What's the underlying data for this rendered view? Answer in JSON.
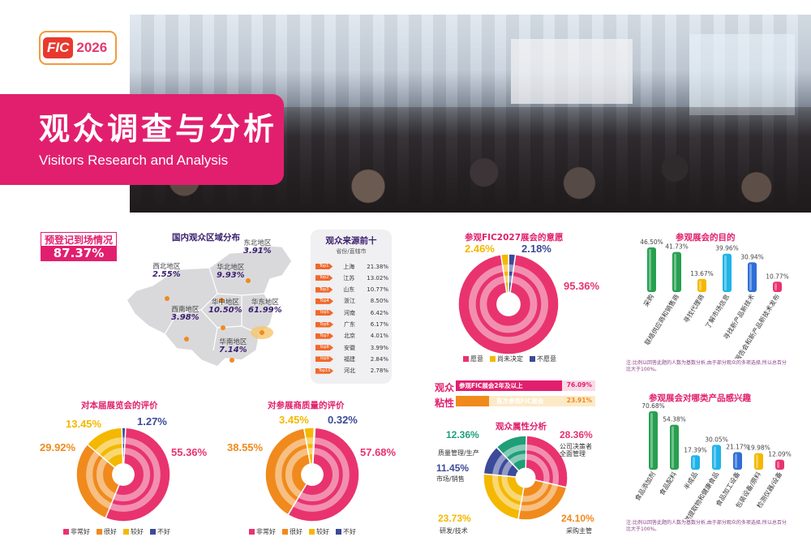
{
  "header": {
    "logo_text": "FIC",
    "logo_year": "2026",
    "title_cn": "观众调查与分析",
    "title_en": "Visitors Research and Analysis"
  },
  "prereg": {
    "label": "预登记到场情况",
    "value": "87.37%"
  },
  "region_map": {
    "title": "国内观众区域分布",
    "regions": [
      {
        "name": "东北地区",
        "value": "3.91%"
      },
      {
        "name": "华北地区",
        "value": "9.93%"
      },
      {
        "name": "西北地区",
        "value": "2.55%"
      },
      {
        "name": "华中地区",
        "value": "10.50%"
      },
      {
        "name": "华东地区",
        "value": "61.99%"
      },
      {
        "name": "西南地区",
        "value": "3.98%"
      },
      {
        "name": "华南地区",
        "value": "7.14%"
      }
    ]
  },
  "top10": {
    "title": "观众来源前十",
    "subtitle": "省份/直辖市",
    "rows": [
      {
        "rank": "Top1",
        "name": "上海",
        "value": "21.38%"
      },
      {
        "rank": "Top2",
        "name": "江苏",
        "value": "13.02%"
      },
      {
        "rank": "Top3",
        "name": "山东",
        "value": "10.77%"
      },
      {
        "rank": "Top4",
        "name": "浙江",
        "value": "8.50%"
      },
      {
        "rank": "Top5",
        "name": "河南",
        "value": "6.42%"
      },
      {
        "rank": "Top6",
        "name": "广东",
        "value": "6.17%"
      },
      {
        "rank": "Top7",
        "name": "北京",
        "value": "4.01%"
      },
      {
        "rank": "Top8",
        "name": "安徽",
        "value": "3.99%"
      },
      {
        "rank": "Top9",
        "name": "福建",
        "value": "2.84%"
      },
      {
        "rank": "Top10",
        "name": "河北",
        "value": "2.78%"
      }
    ]
  },
  "stickiness": {
    "label_a": "观众",
    "label_b": "粘性",
    "rows": [
      {
        "text": "参观FIC展会2年及以上",
        "value": "76.09%",
        "pct": 76.09
      },
      {
        "text": "首次参观FIC展会",
        "value": "23.91%",
        "pct": 23.91
      }
    ]
  },
  "colors": {
    "pink": "#e8336f",
    "orange": "#f08a1c",
    "yellow": "#f4b800",
    "navy": "#3b4a9a",
    "green": "#27a050",
    "blue": "#2f6fd6"
  },
  "chart_data": [
    {
      "id": "intent",
      "type": "pie",
      "title": "参观FIC2027展会的意愿",
      "labels": [
        "愿意",
        "尚未决定",
        "不愿意"
      ],
      "values": [
        95.36,
        2.46,
        2.18
      ],
      "value_labels": [
        "95.36%",
        "2.46%",
        "2.18%"
      ],
      "colors": [
        "#e8336f",
        "#f4b800",
        "#3b4a9a"
      ]
    },
    {
      "id": "show-rating",
      "type": "pie",
      "title": "对本届展览会的评价",
      "labels": [
        "非常好",
        "很好",
        "较好",
        "不好"
      ],
      "values": [
        55.36,
        29.92,
        13.45,
        1.27
      ],
      "value_labels": [
        "55.36%",
        "29.92%",
        "13.45%",
        "1.27%"
      ],
      "colors": [
        "#e8336f",
        "#f08a1c",
        "#f4b800",
        "#3b4a9a"
      ]
    },
    {
      "id": "exhibitor-rating",
      "type": "pie",
      "title": "对参展商质量的评价",
      "labels": [
        "非常好",
        "很好",
        "较好",
        "不好"
      ],
      "values": [
        57.68,
        38.55,
        3.45,
        0.32
      ],
      "value_labels": [
        "57.68%",
        "38.55%",
        "3.45%",
        "0.32%"
      ],
      "colors": [
        "#e8336f",
        "#f08a1c",
        "#f4b800",
        "#3b4a9a"
      ]
    },
    {
      "id": "attributes",
      "type": "pie",
      "title": "观众属性分析",
      "labels": [
        "公司决策者\n全面管理",
        "采购主管",
        "研发/技术",
        "市场/销售",
        "质量管理/生产"
      ],
      "values": [
        28.36,
        24.1,
        23.73,
        11.45,
        12.36
      ],
      "value_labels": [
        "28.36%",
        "24.10%",
        "23.73%",
        "11.45%",
        "12.36%"
      ],
      "colors": [
        "#e8336f",
        "#f08a1c",
        "#f4b800",
        "#3b4a9a",
        "#1f9e78"
      ]
    },
    {
      "id": "purpose",
      "type": "bar",
      "title": "参观展会的目的",
      "categories": [
        "采购",
        "联络供应商和销售商",
        "寻找代理商",
        "了解市场信息",
        "寻找新产品新技术",
        "参加学术报告会和新产品新技术发布"
      ],
      "values": [
        46.5,
        41.73,
        13.67,
        39.96,
        30.94,
        10.77
      ],
      "value_labels": [
        "46.50%",
        "41.73%",
        "13.67%",
        "39.96%",
        "30.94%",
        "10.77%"
      ],
      "colors": [
        "#27a050",
        "#27a050",
        "#f4b800",
        "#1fb3e8",
        "#2f6fd6",
        "#e8336f"
      ],
      "note": "注:比例以回答此题的人数为基数分析,由于部分观众的多项选择,所以总百分比大于100%。"
    },
    {
      "id": "interest",
      "type": "bar",
      "title": "参观展会对哪类产品感兴趣",
      "categories": [
        "食品添加剂",
        "食品配料",
        "半成品",
        "天然提取物和健康食品",
        "食品加工设备",
        "包装设备/原料",
        "检测仪器/设备"
      ],
      "values": [
        70.68,
        54.38,
        17.39,
        30.05,
        21.17,
        19.98,
        12.09
      ],
      "value_labels": [
        "70.68%",
        "54.38%",
        "17.39%",
        "30.05%",
        "21.17%",
        "19.98%",
        "12.09%"
      ],
      "colors": [
        "#27a050",
        "#27a050",
        "#1fb3e8",
        "#1fb3e8",
        "#2f6fd6",
        "#f4b800",
        "#e8336f"
      ],
      "note": "注:比例以回答此题的人数为基数分析,由于部分观众的多项选择,所以总百分比大于100%。"
    }
  ]
}
